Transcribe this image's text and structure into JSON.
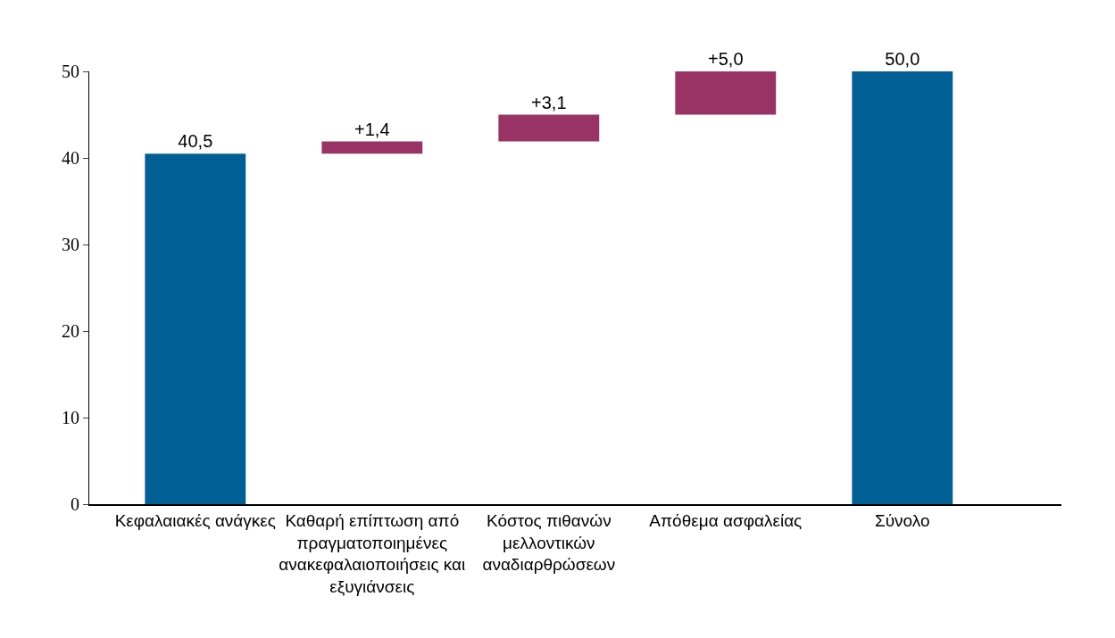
{
  "chart_data": {
    "type": "bar",
    "categories": [
      "Κεφαλαιακές ανάγκες",
      "Καθαρή επίπτωση από πραγματοποιημένες ανακεφαλαιοποιήσεις και εξυγιάνσεις",
      "Κόστος πιθανών μελλοντικών αναδιαρθρώσεων",
      "Απόθεμα ασφαλείας",
      "Σύνολο"
    ],
    "values": [
      40.5,
      1.4,
      3.1,
      5.0,
      50.0
    ],
    "base": [
      0,
      40.5,
      41.9,
      45.0,
      0
    ],
    "colors": [
      "#005f94",
      "#993366",
      "#993366",
      "#993366",
      "#005f94"
    ],
    "value_labels": [
      "40,5",
      "+1,4",
      "+3,1",
      "+5,0",
      "50,0"
    ],
    "ylim": [
      0,
      50
    ],
    "yticks": [
      0,
      10,
      20,
      30,
      40,
      50
    ],
    "grid": false
  }
}
